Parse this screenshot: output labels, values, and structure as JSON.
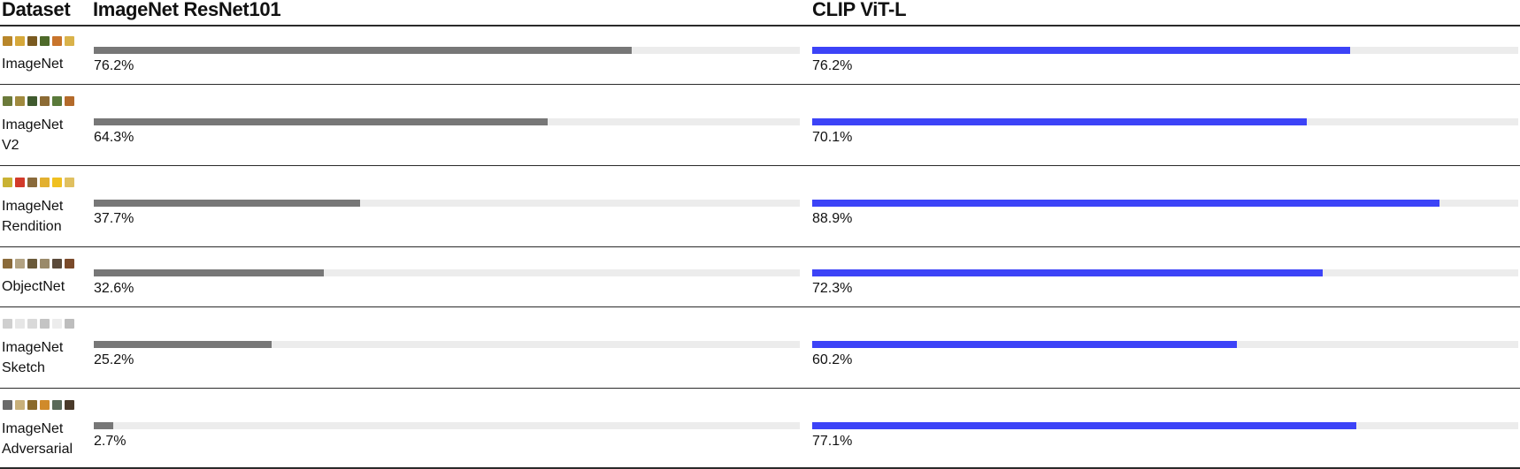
{
  "header": {
    "dataset": "Dataset"
  },
  "colors": {
    "baseline": "#777777",
    "clip": "#3c43f7",
    "track": "#ececec",
    "rule": "#2a2a2a"
  },
  "chart_data": {
    "type": "bar",
    "ylim": [
      0,
      100
    ],
    "categories": [
      [
        "ImageNet"
      ],
      [
        "ImageNet",
        "V2"
      ],
      [
        "ImageNet",
        "Rendition"
      ],
      [
        "ObjectNet"
      ],
      [
        "ImageNet",
        "Sketch"
      ],
      [
        "ImageNet",
        "Adversarial"
      ]
    ],
    "series": [
      {
        "name": "ImageNet ResNet101",
        "values": [
          76.2,
          64.3,
          37.7,
          32.6,
          25.2,
          2.7
        ],
        "labels": [
          "76.2%",
          "64.3%",
          "37.7%",
          "32.6%",
          "25.2%",
          "2.7%"
        ]
      },
      {
        "name": "CLIP ViT-L",
        "values": [
          76.2,
          70.1,
          88.9,
          72.3,
          60.2,
          77.1
        ],
        "labels": [
          "76.2%",
          "70.1%",
          "88.9%",
          "72.3%",
          "60.2%",
          "77.1%"
        ]
      }
    ],
    "thumbnail_palettes": [
      [
        "#b8862a",
        "#d6a83a",
        "#7a5a20",
        "#4e6a2a",
        "#c8742c",
        "#d9b24a"
      ],
      [
        "#6b7a3a",
        "#a08a3e",
        "#3f5a2e",
        "#8c6b35",
        "#5a7a3a",
        "#b36a2a"
      ],
      [
        "#c9b233",
        "#d23a2a",
        "#8a6a3a",
        "#e2b030",
        "#f0c020",
        "#e0c060"
      ],
      [
        "#8a6a3a",
        "#b2a282",
        "#6a5a3a",
        "#9a8a6a",
        "#5a4a3a",
        "#7a4a2a"
      ],
      [
        "#cfcfcf",
        "#e6e6e6",
        "#d9d9d9",
        "#c4c4c4",
        "#ececec",
        "#bdbdbd"
      ],
      [
        "#6a6a6a",
        "#c8b07a",
        "#8a6a2a",
        "#d08a2a",
        "#5a6a5a",
        "#4a3a2a"
      ]
    ]
  }
}
